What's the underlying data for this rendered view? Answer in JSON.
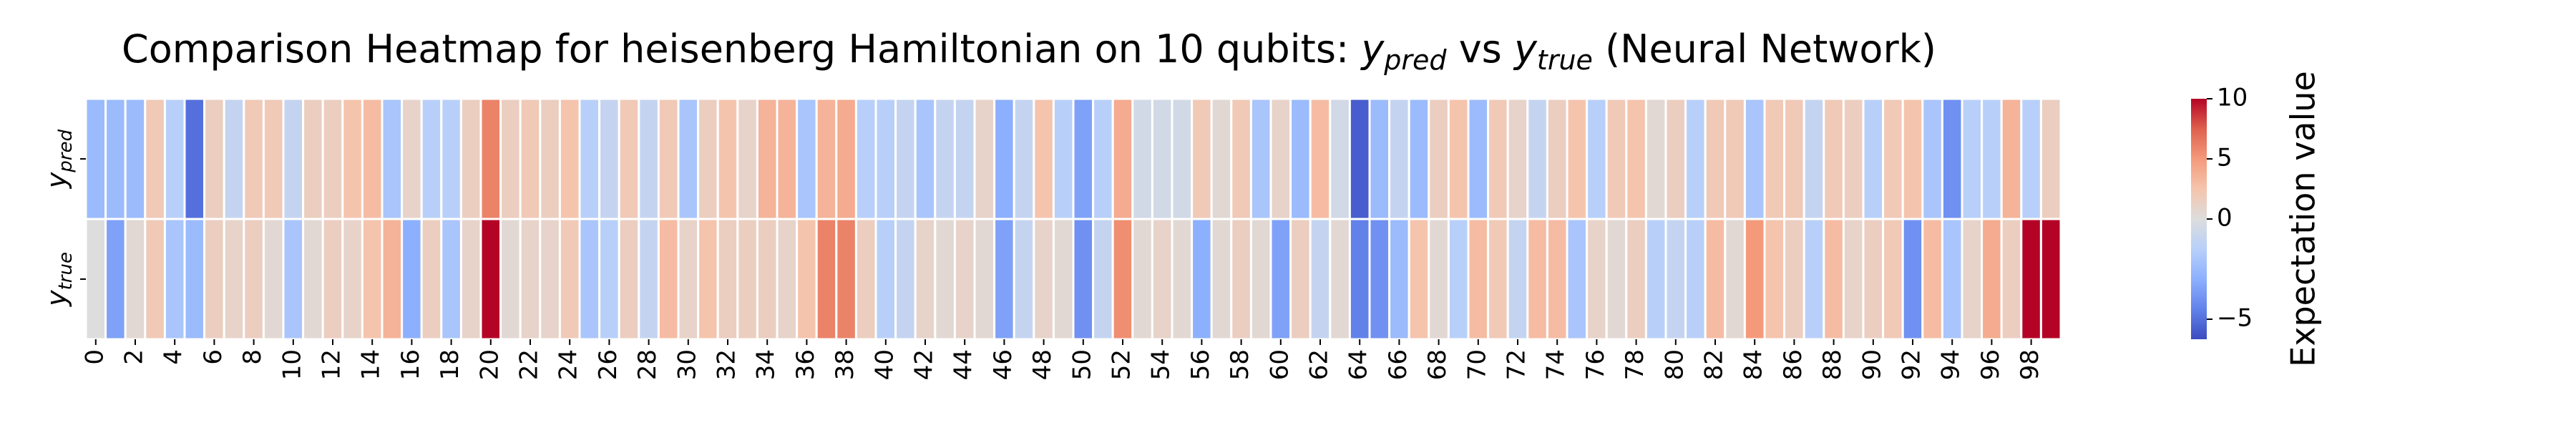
{
  "chart_data": {
    "type": "heatmap",
    "title": {
      "prefix": "Comparison Heatmap for heisenberg Hamiltonian on 10 qubits: ",
      "a_main": "y",
      "a_sub": "pred",
      "mid": " vs ",
      "b_main": "y",
      "b_sub": "true",
      "suffix": " (Neural Network)"
    },
    "rows": [
      {
        "main": "y",
        "sub": "pred"
      },
      {
        "main": "y",
        "sub": "true"
      }
    ],
    "x_tick_labels": [
      "0",
      "2",
      "4",
      "6",
      "8",
      "10",
      "12",
      "14",
      "16",
      "18",
      "20",
      "22",
      "24",
      "26",
      "28",
      "30",
      "32",
      "34",
      "36",
      "38",
      "40",
      "42",
      "44",
      "46",
      "48",
      "50",
      "52",
      "54",
      "56",
      "58",
      "60",
      "62",
      "64",
      "66",
      "68",
      "70",
      "72",
      "74",
      "76",
      "78",
      "80",
      "82",
      "84",
      "86",
      "88",
      "90",
      "92",
      "94",
      "96",
      "98"
    ],
    "x_tick_values": [
      0,
      2,
      4,
      6,
      8,
      10,
      12,
      14,
      16,
      18,
      20,
      22,
      24,
      26,
      28,
      30,
      32,
      34,
      36,
      38,
      40,
      42,
      44,
      46,
      48,
      50,
      52,
      54,
      56,
      58,
      60,
      62,
      64,
      66,
      68,
      70,
      72,
      74,
      76,
      78,
      80,
      82,
      84,
      86,
      88,
      90,
      92,
      94,
      96,
      98
    ],
    "n_columns": 100,
    "values": [
      [
        -2.5,
        -2.5,
        -2.5,
        2,
        -1.5,
        -5,
        1.5,
        -1,
        2,
        2,
        -1,
        1.5,
        1.5,
        2.5,
        3,
        -2,
        1,
        -1.5,
        -1.5,
        1.5,
        6,
        1.5,
        2,
        1.5,
        2.5,
        -1.5,
        -1,
        2,
        -1,
        2,
        -2,
        1.5,
        2.5,
        1,
        3.5,
        3.5,
        -2,
        3.5,
        4,
        -1.5,
        -1.5,
        -1,
        -2,
        -1,
        -1,
        1,
        -3,
        -1,
        2.5,
        -1.5,
        -3.5,
        -1.5,
        4,
        -0.5,
        -0.5,
        -0.5,
        2,
        0.5,
        2,
        -2,
        1,
        -2.5,
        3,
        -0.5,
        -5.5,
        -2.5,
        -1,
        -2.5,
        1.5,
        2.5,
        -2.5,
        2,
        1,
        -1,
        1.5,
        2.5,
        -1.5,
        2,
        2.5,
        0.5,
        1.5,
        -1.5,
        2,
        2,
        -2,
        2,
        2,
        -1,
        2,
        1.5,
        -1.5,
        2,
        2.5,
        -2,
        -4,
        -1.5,
        -1.5,
        3.5,
        -1.5,
        1.5
      ],
      [
        0,
        -3.5,
        0.5,
        2,
        -2,
        -2.5,
        1.5,
        1,
        1.5,
        0.5,
        -2,
        0.5,
        1.5,
        1,
        2.5,
        3.5,
        -3,
        1.5,
        -2,
        1,
        10,
        0.5,
        1,
        1,
        2,
        -2,
        -1.5,
        1.5,
        -1,
        3,
        1,
        2.5,
        1.5,
        1.5,
        1.5,
        1,
        2.5,
        6,
        6,
        1.5,
        -1.5,
        -1,
        1,
        0.5,
        1,
        0.5,
        -3.5,
        -1,
        1,
        0.5,
        -4,
        -1,
        5.5,
        0.5,
        1,
        0.5,
        -3,
        0.5,
        1.5,
        0.5,
        -3.5,
        1.5,
        -1,
        0.5,
        -4.5,
        -4,
        -2.5,
        2.5,
        0.5,
        -1.5,
        3,
        2,
        -1,
        3,
        3,
        -2,
        1,
        0.5,
        1.5,
        -1.5,
        -1,
        -1.5,
        3,
        0.5,
        5,
        2.5,
        1.5,
        -1.5,
        3,
        1,
        1.5,
        2,
        -4,
        3,
        -2,
        1,
        4,
        1.5
      ]
    ],
    "vmin": -6,
    "vmax": 10,
    "colormap": "coolwarm",
    "colorbar": {
      "label": "Expectation value",
      "tick_labels": [
        "10",
        "5",
        "0",
        "−5"
      ],
      "tick_values": [
        10,
        5,
        0,
        -5
      ]
    }
  }
}
